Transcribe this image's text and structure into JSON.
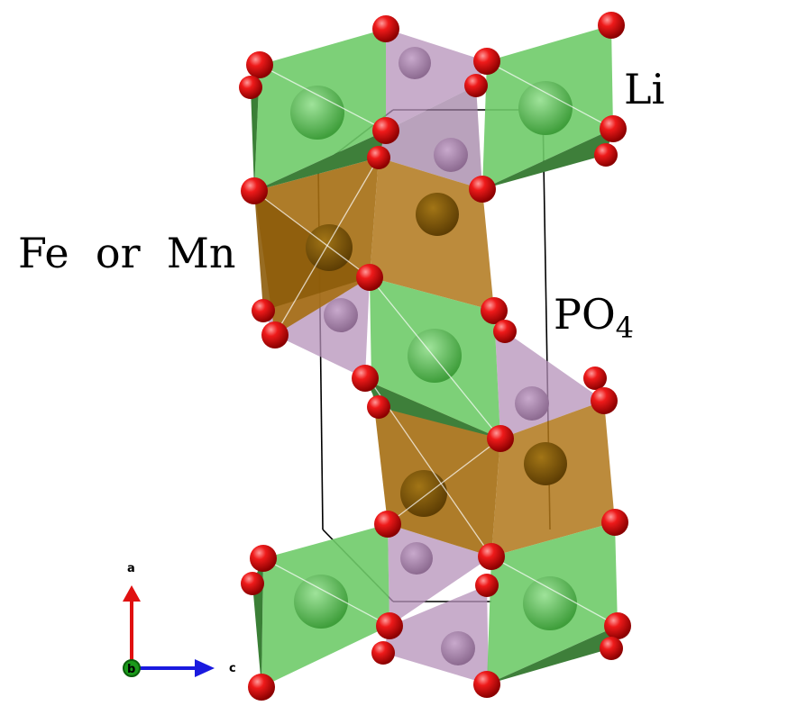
{
  "labels": {
    "li": "Li",
    "fe_mn": "Fe  or  Mn",
    "po4_main": "PO",
    "po4_sub": "4"
  },
  "axes": {
    "a": "a",
    "b": "b",
    "c": "c"
  },
  "colors": {
    "li_polyhedron": "#5fc15a",
    "fe_polyhedron": "#b0771a",
    "po4_polyhedron": "#b592b9",
    "oxygen": "#e01010",
    "axis_a": "#e01010",
    "axis_b": "#1a9a1a",
    "axis_c": "#1a1adf"
  }
}
